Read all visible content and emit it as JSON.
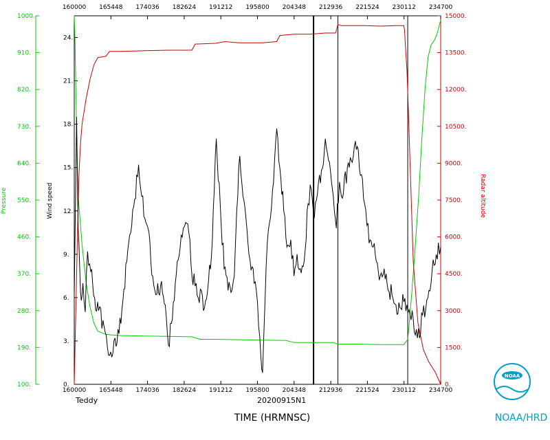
{
  "chart_data": {
    "type": "line",
    "xlabel": "TIME (HRMNSC)",
    "storm_name": "Teddy",
    "flight_id": "20200915N1",
    "logo_text": "NOAA/HRD",
    "logo_emblem_text": "NOAA",
    "x_range": [
      "16:00:00",
      "23:47:00"
    ],
    "x_ticks": [
      "160000",
      "165448",
      "174036",
      "182624",
      "191212",
      "195800",
      "204348",
      "212936",
      "221524",
      "230112",
      "234700"
    ],
    "wind_axis": {
      "label": "Wind speed",
      "range": [
        0,
        25.5
      ],
      "ticks": [
        "0.",
        "3.",
        "6.",
        "9.",
        "12.",
        "15.",
        "18.",
        "21.",
        "24."
      ]
    },
    "pressure_axis": {
      "label": "Pressure",
      "range": [
        100,
        1000
      ],
      "ticks": [
        "100.",
        "190.",
        "280.",
        "370.",
        "460.",
        "550.",
        "640.",
        "730.",
        "820.",
        "910.",
        "1000."
      ]
    },
    "altitude_axis": {
      "label": "Radar altitude",
      "range": [
        0,
        15000
      ],
      "ticks": [
        "0.",
        "1500.",
        "3000.",
        "4500.",
        "6000.",
        "7500.",
        "9000.",
        "10500.",
        "12000.",
        "13500.",
        "15000."
      ]
    },
    "colors": {
      "wind": "#000000",
      "pressure": "#00cc00",
      "altitude": "#cc0000"
    },
    "vertical_markers": [
      "21:05:00",
      "21:36:00",
      "23:05:00"
    ],
    "series": [
      {
        "name": "Wind speed",
        "x": [
          "16:00",
          "16:03",
          "16:05",
          "16:07",
          "16:09",
          "16:11",
          "16:14",
          "16:17",
          "16:21",
          "16:26",
          "16:31",
          "16:38",
          "16:45",
          "16:52",
          "16:57",
          "17:02",
          "17:07",
          "17:12",
          "17:17",
          "17:22",
          "17:26",
          "17:30",
          "17:34",
          "17:40",
          "17:44",
          "17:50",
          "17:56",
          "18:00",
          "18:05",
          "18:10",
          "18:15",
          "18:19",
          "18:22",
          "18:26",
          "18:30",
          "18:34",
          "18:38",
          "18:42",
          "18:46",
          "18:50",
          "18:56",
          "19:01",
          "19:06",
          "19:11",
          "19:16",
          "19:21",
          "19:24",
          "19:27",
          "19:31",
          "19:35",
          "19:40",
          "19:44",
          "19:48",
          "19:52",
          "19:55",
          "19:58",
          "20:00",
          "20:03",
          "20:06",
          "20:10",
          "20:14",
          "20:18",
          "20:22",
          "20:27",
          "20:31",
          "20:36",
          "20:40",
          "20:44",
          "20:48",
          "20:53",
          "20:58",
          "21:02",
          "21:06",
          "21:10",
          "21:15",
          "21:20",
          "21:24",
          "21:29",
          "21:34",
          "21:38",
          "21:43",
          "21:48",
          "21:53",
          "21:57",
          "22:02",
          "22:06",
          "22:10",
          "22:13",
          "22:17",
          "22:21",
          "22:25",
          "22:30",
          "22:35",
          "22:40",
          "22:45",
          "22:50",
          "22:55",
          "23:00",
          "23:04",
          "23:08",
          "23:12",
          "23:16",
          "23:20",
          "23:24",
          "23:28",
          "23:32",
          "23:36",
          "23:40",
          "23:44",
          "23:47"
        ],
        "values": [
          6.2,
          18.5,
          10.8,
          8.0,
          5.8,
          7.0,
          5.0,
          9.2,
          7.8,
          6.0,
          5.1,
          4.0,
          2.0,
          3.2,
          3.5,
          5.8,
          8.5,
          10.5,
          12.8,
          15.2,
          13.0,
          11.5,
          10.8,
          7.5,
          6.2,
          6.8,
          5.5,
          2.7,
          4.5,
          7.6,
          9.5,
          10.8,
          11.2,
          10.5,
          7.5,
          6.8,
          6.0,
          6.5,
          5.3,
          6.5,
          10.0,
          17.0,
          12.5,
          8.0,
          6.5,
          6.5,
          7.5,
          12.0,
          15.8,
          13.0,
          10.8,
          8.6,
          8.0,
          6.5,
          4.0,
          1.8,
          0.8,
          5.5,
          9.8,
          11.5,
          14.0,
          17.7,
          15.0,
          12.0,
          9.5,
          10.0,
          7.5,
          9.0,
          8.0,
          8.5,
          12.5,
          13.5,
          11.5,
          13.2,
          14.8,
          17.0,
          15.5,
          13.5,
          10.8,
          14.0,
          13.2,
          15.0,
          15.5,
          16.5,
          16.2,
          14.5,
          12.5,
          11.0,
          10.0,
          9.5,
          8.5,
          7.5,
          8.0,
          6.5,
          6.2,
          5.5,
          5.3,
          5.7,
          5.5,
          4.8,
          4.5,
          3.8,
          3.2,
          4.8,
          5.2,
          6.5,
          7.8,
          8.3,
          9.8,
          9.5
        ]
      },
      {
        "name": "Pressure",
        "x": [
          "16:00",
          "16:01",
          "16:03",
          "16:05",
          "16:10",
          "16:15",
          "16:20",
          "16:25",
          "16:30",
          "16:40",
          "16:50",
          "17:00",
          "17:30",
          "18:00",
          "18:30",
          "18:40",
          "19:00",
          "19:30",
          "20:00",
          "20:30",
          "20:40",
          "21:00",
          "21:30",
          "21:36",
          "22:00",
          "22:30",
          "23:00",
          "23:05",
          "23:07",
          "23:10",
          "23:14",
          "23:19",
          "23:23",
          "23:27",
          "23:31",
          "23:35",
          "23:39",
          "23:43",
          "23:47"
        ],
        "values": [
          1000,
          940,
          720,
          560,
          440,
          350,
          290,
          250,
          230,
          222,
          220,
          219,
          218,
          217,
          216,
          210,
          210,
          209,
          208,
          207,
          202,
          202,
          202,
          198,
          198,
          197,
          197,
          210,
          250,
          320,
          420,
          560,
          700,
          820,
          900,
          930,
          940,
          960,
          990
        ]
      },
      {
        "name": "Radar altitude",
        "x": [
          "16:00",
          "16:02",
          "16:04",
          "16:06",
          "16:08",
          "16:10",
          "16:15",
          "16:20",
          "16:25",
          "16:30",
          "16:40",
          "16:45",
          "17:00",
          "17:30",
          "18:00",
          "18:30",
          "18:34",
          "19:00",
          "19:12",
          "19:30",
          "20:00",
          "20:18",
          "20:22",
          "20:40",
          "21:00",
          "21:20",
          "21:33",
          "21:36",
          "21:40",
          "21:50",
          "22:10",
          "22:30",
          "22:50",
          "23:00",
          "23:01",
          "23:02",
          "23:04",
          "23:06",
          "23:09",
          "23:12",
          "23:18",
          "23:25",
          "23:32",
          "23:40",
          "23:47"
        ],
        "values": [
          0,
          3000,
          6000,
          8500,
          9800,
          10600,
          11600,
          12400,
          13000,
          13300,
          13350,
          13550,
          13550,
          13580,
          13600,
          13600,
          13850,
          13880,
          13950,
          13900,
          13900,
          13950,
          14200,
          14250,
          14250,
          14300,
          14300,
          14650,
          14600,
          14600,
          14600,
          14580,
          14600,
          14600,
          14400,
          13800,
          12800,
          11000,
          8000,
          5000,
          2500,
          1400,
          900,
          500,
          0
        ]
      }
    ]
  }
}
